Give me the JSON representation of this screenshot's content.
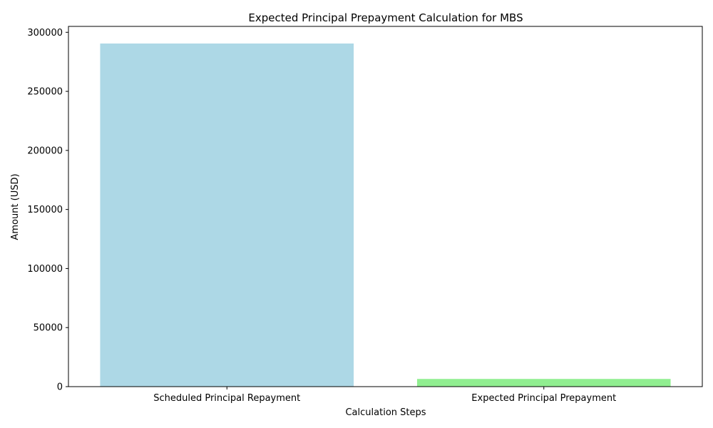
{
  "chart_data": {
    "type": "bar",
    "title": "Expected Principal Prepayment Calculation for MBS",
    "xlabel": "Calculation Steps",
    "ylabel": "Amount (USD)",
    "categories": [
      "Scheduled Principal Repayment",
      "Expected Principal Prepayment"
    ],
    "values": [
      290500,
      6500
    ],
    "colors": [
      "#add8e6",
      "#90ee90"
    ],
    "ylim": [
      0,
      305000
    ],
    "yticks": [
      0,
      50000,
      100000,
      150000,
      200000,
      250000,
      300000
    ],
    "ytick_labels": [
      "0",
      "50000",
      "100000",
      "150000",
      "200000",
      "250000",
      "300000"
    ],
    "grid": false,
    "legend": "none"
  }
}
